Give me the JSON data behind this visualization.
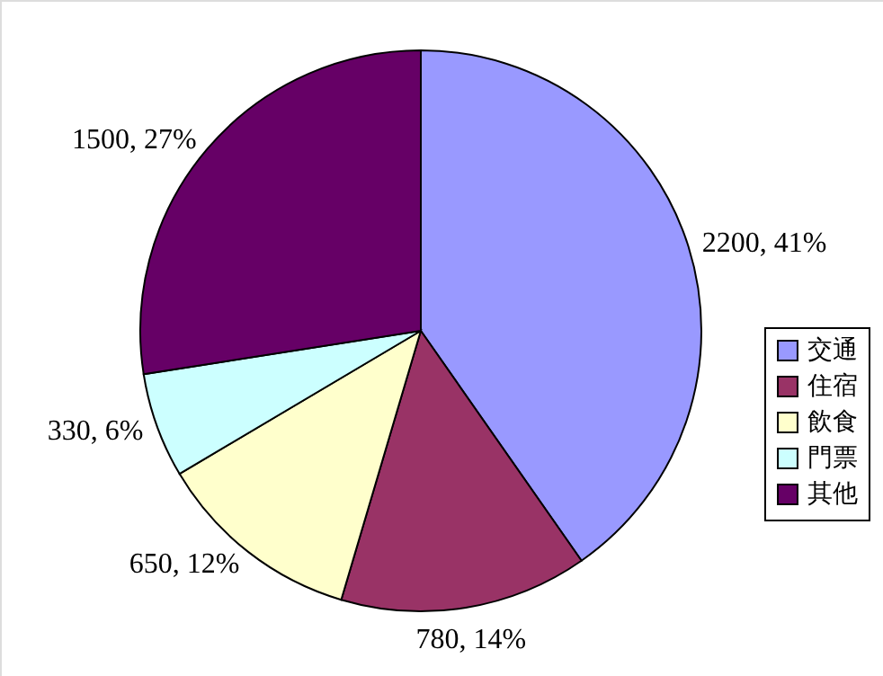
{
  "chart_data": {
    "type": "pie",
    "categories": [
      "交通",
      "住宿",
      "飲食",
      "門票",
      "其他"
    ],
    "values": [
      2200,
      780,
      650,
      330,
      1500
    ],
    "colors": [
      "#9999ff",
      "#993366",
      "#ffffcc",
      "#ccffff",
      "#660066"
    ],
    "value_labels": [
      "2200, 41%",
      "780, 14%",
      "650, 12%",
      "330, 6%",
      "1500, 27%"
    ],
    "legend": "right"
  }
}
